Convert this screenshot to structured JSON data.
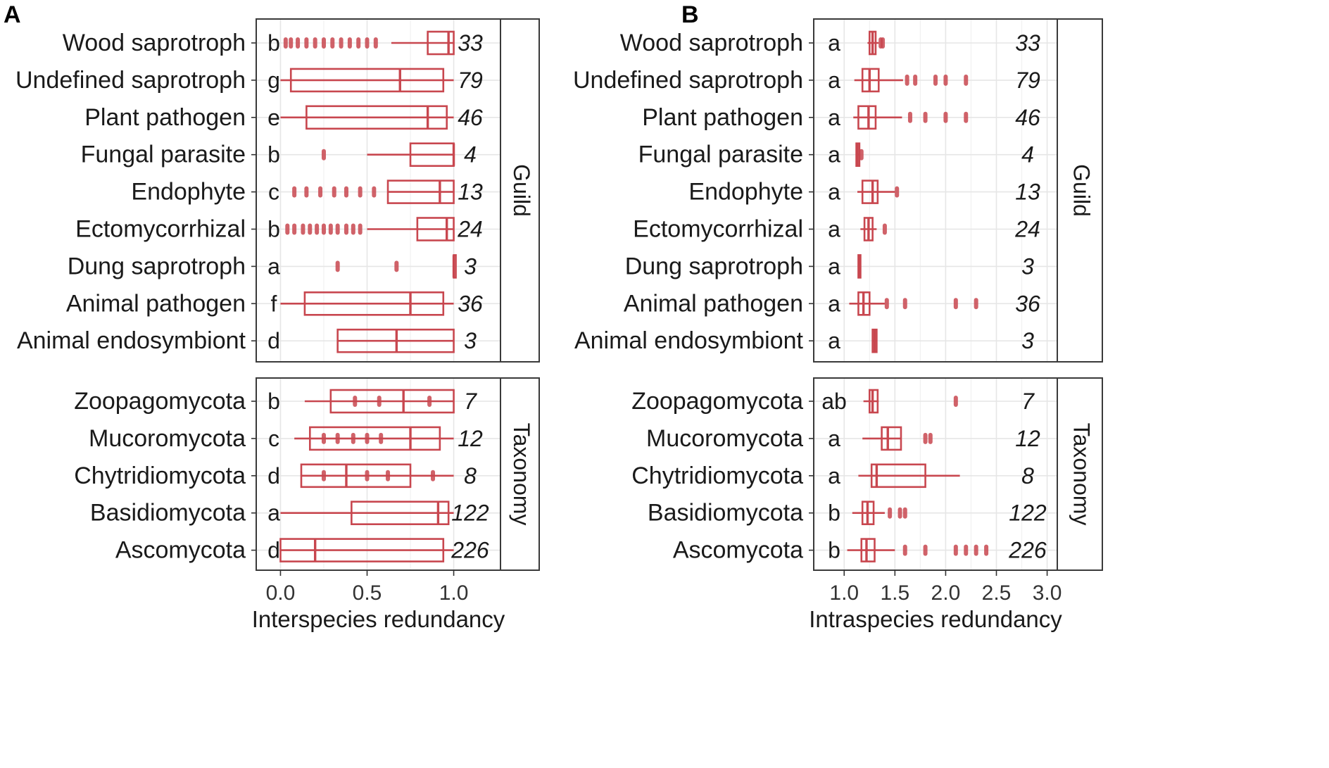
{
  "colors": {
    "mark": "#c8474f",
    "grid": "#e6e6e6",
    "frame": "#3a3a3a"
  },
  "chart_data": [
    {
      "type": "box",
      "panel": "A",
      "xlabel": "Interspecies redundancy",
      "xlim": [
        -0.14,
        1.27
      ],
      "xticks": [
        0.0,
        0.5,
        1.0
      ],
      "xtick_labels": [
        "0.0",
        "0.5",
        "1.0"
      ],
      "facets": [
        {
          "strip": "Guild",
          "rows": [
            {
              "category": "Wood saprotroph",
              "group": "b",
              "n": "33",
              "q1": 0.85,
              "median": 0.97,
              "q3": 1.0,
              "whisker_low": 0.64,
              "whisker_high": 1.0,
              "outliers": [
                0.03,
                0.06,
                0.1,
                0.15,
                0.2,
                0.25,
                0.3,
                0.35,
                0.4,
                0.45,
                0.5,
                0.55
              ]
            },
            {
              "category": "Undefined saprotroph",
              "group": "g",
              "n": "79",
              "q1": 0.06,
              "median": 0.69,
              "q3": 0.94,
              "whisker_low": 0.0,
              "whisker_high": 1.0,
              "outliers": []
            },
            {
              "category": "Plant pathogen",
              "group": "e",
              "n": "46",
              "q1": 0.15,
              "median": 0.85,
              "q3": 0.96,
              "whisker_low": 0.0,
              "whisker_high": 1.0,
              "outliers": []
            },
            {
              "category": "Fungal parasite",
              "group": "b",
              "n": "4",
              "q1": 0.75,
              "median": 1.0,
              "q3": 1.0,
              "whisker_low": 0.5,
              "whisker_high": 1.0,
              "outliers": [
                0.25
              ]
            },
            {
              "category": "Endophyte",
              "group": "c",
              "n": "13",
              "q1": 0.62,
              "median": 0.92,
              "q3": 1.0,
              "whisker_low": 0.62,
              "whisker_high": 1.0,
              "outliers": [
                0.08,
                0.15,
                0.23,
                0.31,
                0.38,
                0.46,
                0.54
              ]
            },
            {
              "category": "Ectomycorrhizal",
              "group": "b",
              "n": "24",
              "q1": 0.79,
              "median": 0.96,
              "q3": 1.0,
              "whisker_low": 0.5,
              "whisker_high": 1.0,
              "outliers": [
                0.04,
                0.08,
                0.13,
                0.17,
                0.21,
                0.25,
                0.29,
                0.33,
                0.38,
                0.42,
                0.46
              ]
            },
            {
              "category": "Dung saprotroph",
              "group": "a",
              "n": "3",
              "q1": 1.0,
              "median": 1.0,
              "q3": 1.0,
              "whisker_low": 1.0,
              "whisker_high": 1.0,
              "outliers": [
                0.33,
                0.67
              ]
            },
            {
              "category": "Animal pathogen",
              "group": "f",
              "n": "36",
              "q1": 0.14,
              "median": 0.75,
              "q3": 0.94,
              "whisker_low": 0.0,
              "whisker_high": 1.0,
              "outliers": []
            },
            {
              "category": "Animal endosymbiont",
              "group": "d",
              "n": "3",
              "q1": 0.33,
              "median": 0.67,
              "q3": 1.0,
              "whisker_low": 0.33,
              "whisker_high": 1.0,
              "outliers": []
            }
          ]
        },
        {
          "strip": "Taxonomy",
          "rows": [
            {
              "category": "Zoopagomycota",
              "group": "b",
              "n": "7",
              "q1": 0.29,
              "median": 0.71,
              "q3": 1.0,
              "whisker_low": 0.14,
              "whisker_high": 1.0,
              "outliers": [
                0.43,
                0.57,
                0.86
              ]
            },
            {
              "category": "Mucoromycota",
              "group": "c",
              "n": "12",
              "q1": 0.17,
              "median": 0.75,
              "q3": 0.92,
              "whisker_low": 0.08,
              "whisker_high": 1.0,
              "outliers": [
                0.25,
                0.33,
                0.42,
                0.5,
                0.58
              ]
            },
            {
              "category": "Chytridiomycota",
              "group": "d",
              "n": "8",
              "q1": 0.12,
              "median": 0.38,
              "q3": 0.75,
              "whisker_low": 0.12,
              "whisker_high": 1.0,
              "outliers": [
                0.25,
                0.5,
                0.62,
                0.88
              ]
            },
            {
              "category": "Basidiomycota",
              "group": "a",
              "n": "122",
              "q1": 0.41,
              "median": 0.91,
              "q3": 0.97,
              "whisker_low": 0.0,
              "whisker_high": 1.0,
              "outliers": []
            },
            {
              "category": "Ascomycota",
              "group": "d",
              "n": "226",
              "q1": 0.0,
              "median": 0.2,
              "q3": 0.94,
              "whisker_low": 0.0,
              "whisker_high": 1.0,
              "outliers": []
            }
          ]
        }
      ]
    },
    {
      "type": "box",
      "panel": "B",
      "xlabel": "Intraspecies redundancy",
      "xlim": [
        0.7,
        3.1
      ],
      "xticks": [
        1.0,
        1.5,
        2.0,
        2.5,
        3.0
      ],
      "xtick_labels": [
        "1.0",
        "1.5",
        "2.0",
        "2.5",
        "3.0"
      ],
      "facets": [
        {
          "strip": "Guild",
          "rows": [
            {
              "category": "Wood saprotroph",
              "group": "a",
              "n": "33",
              "q1": 1.25,
              "median": 1.28,
              "q3": 1.31,
              "whisker_low": 1.23,
              "whisker_high": 1.34,
              "outliers": [
                1.36,
                1.38
              ]
            },
            {
              "category": "Undefined saprotroph",
              "group": "a",
              "n": "79",
              "q1": 1.18,
              "median": 1.25,
              "q3": 1.34,
              "whisker_low": 1.1,
              "whisker_high": 1.58,
              "outliers": [
                1.62,
                1.7,
                1.9,
                2.0,
                2.2
              ]
            },
            {
              "category": "Plant pathogen",
              "group": "a",
              "n": "46",
              "q1": 1.14,
              "median": 1.24,
              "q3": 1.31,
              "whisker_low": 1.09,
              "whisker_high": 1.57,
              "outliers": [
                1.65,
                1.8,
                2.0,
                2.2
              ]
            },
            {
              "category": "Fungal parasite",
              "group": "a",
              "n": "4",
              "q1": 1.12,
              "median": 1.13,
              "q3": 1.15,
              "whisker_low": 1.12,
              "whisker_high": 1.15,
              "outliers": [
                1.17
              ]
            },
            {
              "category": "Endophyte",
              "group": "a",
              "n": "13",
              "q1": 1.18,
              "median": 1.28,
              "q3": 1.33,
              "whisker_low": 1.13,
              "whisker_high": 1.5,
              "outliers": [
                1.52
              ]
            },
            {
              "category": "Ectomycorrhizal",
              "group": "a",
              "n": "24",
              "q1": 1.2,
              "median": 1.24,
              "q3": 1.28,
              "whisker_low": 1.16,
              "whisker_high": 1.32,
              "outliers": [
                1.4
              ]
            },
            {
              "category": "Dung saprotroph",
              "group": "a",
              "n": "3",
              "q1": 1.14,
              "median": 1.15,
              "q3": 1.16,
              "whisker_low": 1.14,
              "whisker_high": 1.16,
              "outliers": []
            },
            {
              "category": "Animal pathogen",
              "group": "a",
              "n": "36",
              "q1": 1.14,
              "median": 1.19,
              "q3": 1.25,
              "whisker_low": 1.05,
              "whisker_high": 1.4,
              "outliers": [
                1.42,
                1.6,
                2.1,
                2.3
              ]
            },
            {
              "category": "Animal endosymbiont",
              "group": "a",
              "n": "3",
              "q1": 1.28,
              "median": 1.3,
              "q3": 1.32,
              "whisker_low": 1.28,
              "whisker_high": 1.32,
              "outliers": []
            }
          ]
        },
        {
          "strip": "Taxonomy",
          "rows": [
            {
              "category": "Zoopagomycota",
              "group": "ab",
              "n": "7",
              "q1": 1.25,
              "median": 1.28,
              "q3": 1.33,
              "whisker_low": 1.19,
              "whisker_high": 1.34,
              "outliers": [
                2.1
              ]
            },
            {
              "category": "Mucoromycota",
              "group": "a",
              "n": "12",
              "q1": 1.37,
              "median": 1.43,
              "q3": 1.56,
              "whisker_low": 1.18,
              "whisker_high": 1.56,
              "outliers": [
                1.8,
                1.85
              ]
            },
            {
              "category": "Chytridiomycota",
              "group": "a",
              "n": "8",
              "q1": 1.27,
              "median": 1.32,
              "q3": 1.8,
              "whisker_low": 1.14,
              "whisker_high": 2.14,
              "outliers": []
            },
            {
              "category": "Basidiomycota",
              "group": "b",
              "n": "122",
              "q1": 1.18,
              "median": 1.23,
              "q3": 1.29,
              "whisker_low": 1.08,
              "whisker_high": 1.4,
              "outliers": [
                1.45,
                1.55,
                1.6
              ]
            },
            {
              "category": "Ascomycota",
              "group": "b",
              "n": "226",
              "q1": 1.17,
              "median": 1.22,
              "q3": 1.3,
              "whisker_low": 1.03,
              "whisker_high": 1.5,
              "outliers": [
                1.6,
                1.8,
                2.1,
                2.2,
                2.3,
                2.4
              ]
            }
          ]
        }
      ]
    }
  ]
}
